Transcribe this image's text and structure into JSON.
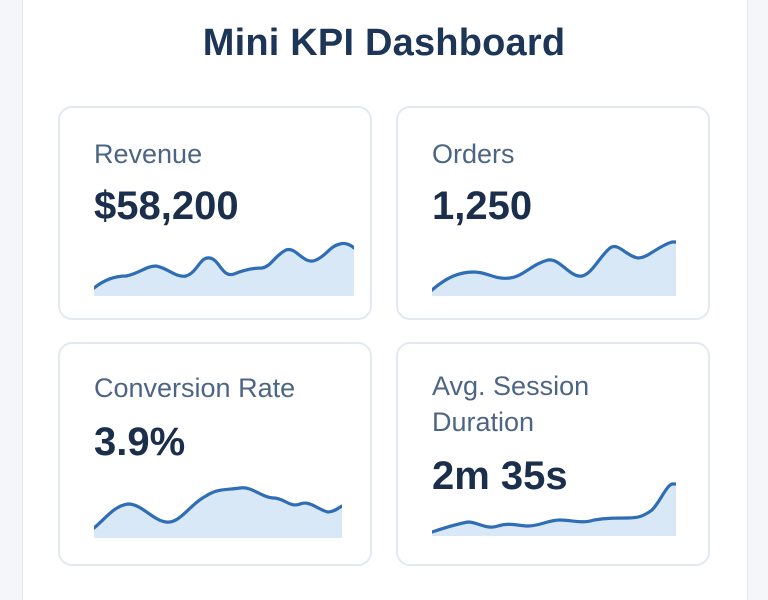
{
  "dashboard": {
    "title": "Mini KPI Dashboard"
  },
  "cards": [
    {
      "label": "Revenue",
      "value": "$58,200"
    },
    {
      "label": "Orders",
      "value": "1,250"
    },
    {
      "label": "Conversion Rate",
      "value": "3.9%"
    },
    {
      "label": "Avg. Session\nDuration",
      "value": "2m 35s"
    }
  ],
  "colors": {
    "line": "#2f6db5",
    "fill": "#d9e8f7",
    "title": "#1d3557"
  }
}
